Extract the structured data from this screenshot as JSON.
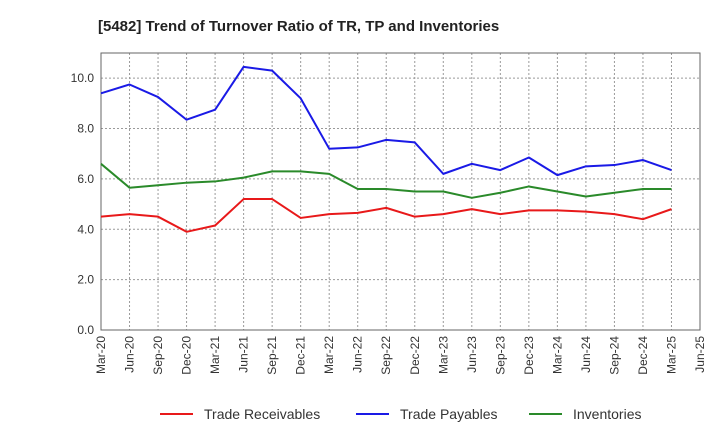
{
  "chart_data": {
    "type": "line",
    "title": "[5482]  Trend of Turnover Ratio of TR, TP and Inventories",
    "xlabel": "",
    "ylabel": "",
    "ylim": [
      0,
      11
    ],
    "yticks": [
      0,
      2,
      4,
      6,
      8,
      10
    ],
    "ytick_labels": [
      "0.0",
      "2.0",
      "4.0",
      "6.0",
      "8.0",
      "10.0"
    ],
    "grid": true,
    "legend_position": "bottom",
    "x": [
      "Mar-20",
      "Jun-20",
      "Sep-20",
      "Dec-20",
      "Mar-21",
      "Jun-21",
      "Sep-21",
      "Dec-21",
      "Mar-22",
      "Jun-22",
      "Sep-22",
      "Dec-22",
      "Mar-23",
      "Jun-23",
      "Sep-23",
      "Dec-23",
      "Mar-24",
      "Jun-24",
      "Sep-24",
      "Dec-24",
      "Mar-25",
      "Jun-25"
    ],
    "series": [
      {
        "name": "Trade Receivables",
        "color": "#e8191a",
        "values": [
          4.5,
          4.6,
          4.5,
          3.9,
          4.15,
          5.2,
          5.2,
          4.45,
          4.6,
          4.65,
          4.85,
          4.5,
          4.6,
          4.8,
          4.6,
          4.75,
          4.75,
          4.7,
          4.6,
          4.4,
          4.8,
          null
        ]
      },
      {
        "name": "Trade Payables",
        "color": "#1a1ae6",
        "values": [
          9.4,
          9.75,
          9.25,
          8.35,
          8.75,
          10.45,
          10.3,
          9.2,
          7.2,
          7.25,
          7.55,
          7.45,
          6.2,
          6.6,
          6.35,
          6.85,
          6.15,
          6.5,
          6.55,
          6.75,
          6.35,
          null
        ]
      },
      {
        "name": "Inventories",
        "color": "#2a8a2a",
        "values": [
          6.6,
          5.65,
          5.75,
          5.85,
          5.9,
          6.05,
          6.3,
          6.3,
          6.2,
          5.6,
          5.6,
          5.5,
          5.5,
          5.25,
          5.45,
          5.7,
          5.5,
          5.3,
          5.45,
          5.6,
          5.6,
          null
        ]
      }
    ]
  }
}
